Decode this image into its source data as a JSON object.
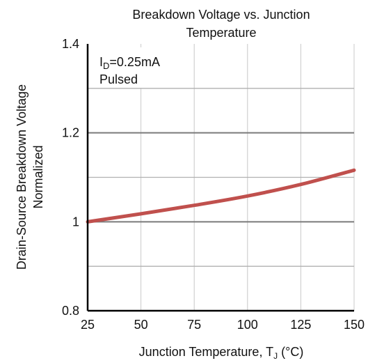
{
  "chart_data": {
    "type": "line",
    "title": "Breakdown Voltage vs. Junction Temperature",
    "title_lines": [
      "Breakdown Voltage vs. Junction",
      "Temperature"
    ],
    "xlabel": "Junction Temperature, TJ (°C)",
    "xlabel_parts": {
      "prefix": "Junction Temperature, T",
      "subscript": "J",
      "suffix": " (°C)"
    },
    "ylabel": "Drain-Source Breakdown Voltage Normalized",
    "ylabel_lines": [
      "Drain-Source Breakdown Voltage",
      "Normalized"
    ],
    "xlim": [
      25,
      150
    ],
    "ylim": [
      0.8,
      1.4
    ],
    "xticks": [
      25,
      50,
      75,
      100,
      125,
      150
    ],
    "xtick_labels": [
      "25",
      "50",
      "75",
      "100",
      "125",
      "150"
    ],
    "yticks": [
      0.8,
      1.0,
      1.2,
      1.4
    ],
    "ytick_labels": [
      "0.8",
      "1",
      "1.2",
      "1.4"
    ],
    "grid": true,
    "annotation": {
      "line1_parts": {
        "prefix": "I",
        "subscript": "D",
        "suffix": "=0.25mA"
      },
      "line2": "Pulsed"
    },
    "series": [
      {
        "x": [
          25,
          50,
          75,
          100,
          125,
          150
        ],
        "y": [
          1.0,
          1.018,
          1.037,
          1.058,
          1.084,
          1.116
        ],
        "color": "#c0504d"
      }
    ]
  }
}
